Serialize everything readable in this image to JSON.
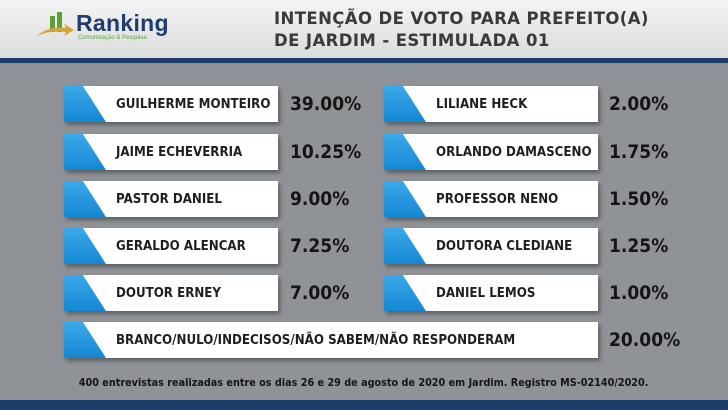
{
  "logo": {
    "name": "Ranking",
    "tagline": "Comunicação & Pesquisa",
    "colors": {
      "green": "#5aa13a",
      "blue": "#1d3d6a"
    }
  },
  "title": {
    "line1": "INTENÇÃO DE VOTO PARA PREFEITO(A)",
    "line2": "DE JARDIM - ESTIMULADA 01"
  },
  "chart_data": {
    "type": "table",
    "title": "INTENÇÃO DE VOTO PARA PREFEITO(A) DE JARDIM - ESTIMULADA 01",
    "rows": [
      {
        "name": "GUILHERME MONTEIRO",
        "value": "39.00%"
      },
      {
        "name": "JAIME ECHEVERRIA",
        "value": "10.25%"
      },
      {
        "name": "PASTOR DANIEL",
        "value": "9.00%"
      },
      {
        "name": "GERALDO ALENCAR",
        "value": "7.25%"
      },
      {
        "name": "DOUTOR ERNEY",
        "value": "7.00%"
      },
      {
        "name": "LILIANE HECK",
        "value": "2.00%"
      },
      {
        "name": "ORLANDO DAMASCENO",
        "value": "1.75%"
      },
      {
        "name": "PROFESSOR NENO",
        "value": "1.50%"
      },
      {
        "name": "DOUTORA CLEDIANE",
        "value": "1.25%"
      },
      {
        "name": "DANIEL LEMOS",
        "value": "1.00%"
      },
      {
        "name": "BRANCO/NULO/INDECISOS/NÃO SABEM/NÃO RESPONDERAM",
        "value": "20.00%"
      }
    ],
    "accent_color": "#1e96dc"
  },
  "footer": "400 entrevistas realizadas entre os dias 26 e 29 de agosto de 2020 em Jardim. Registro MS-02140/2020."
}
